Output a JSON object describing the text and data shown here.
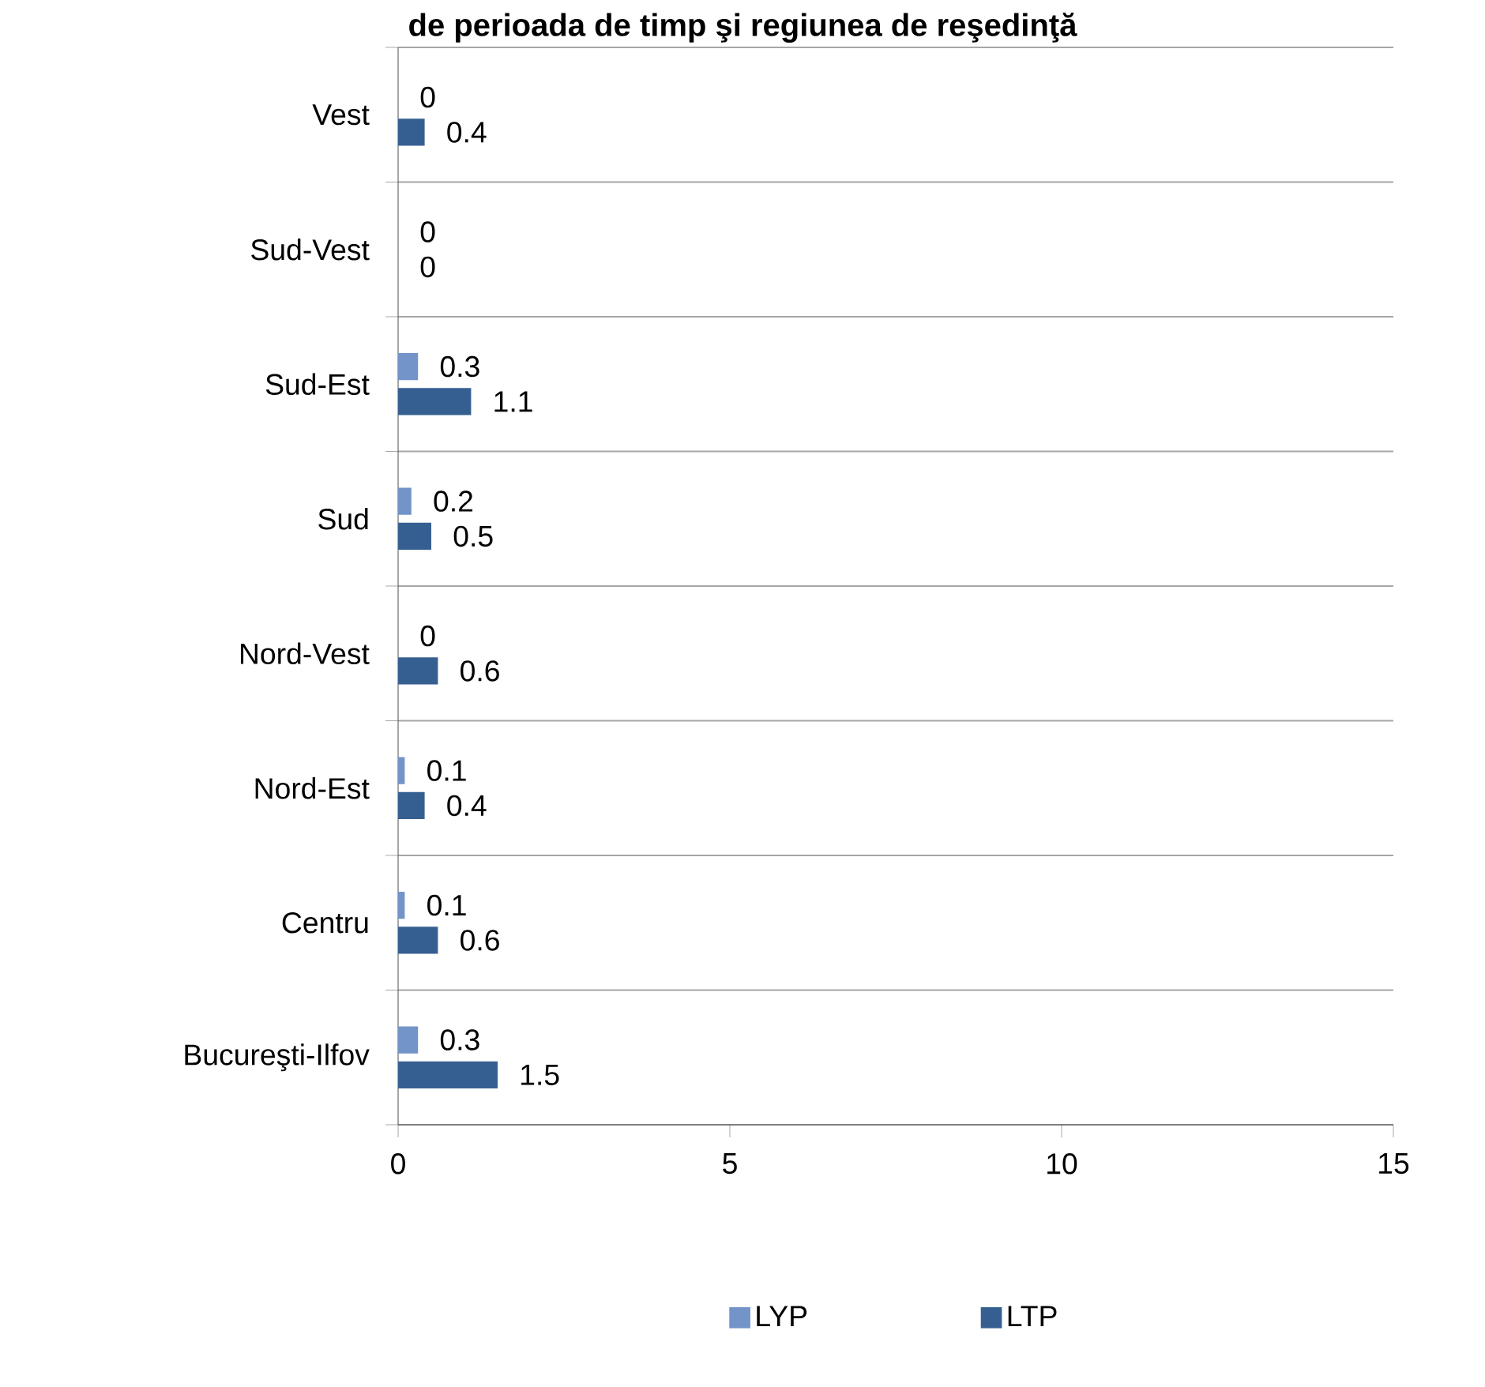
{
  "chart_data": {
    "type": "bar",
    "orientation": "horizontal",
    "title": "de perioada de timp şi regiunea de reşedinţă",
    "categories": [
      "Vest",
      "Sud-Vest",
      "Sud-Est",
      "Sud",
      "Nord-Vest",
      "Nord-Est",
      "Centru",
      "Bucureşti-Ilfov"
    ],
    "series": [
      {
        "name": "LYP",
        "color": "#7394c8",
        "values": [
          0,
          0,
          0.3,
          0.2,
          0,
          0.1,
          0.1,
          0.3
        ]
      },
      {
        "name": "LTP",
        "color": "#365f91",
        "values": [
          0.4,
          0,
          1.1,
          0.5,
          0.6,
          0.4,
          0.6,
          1.5
        ]
      }
    ],
    "xlim": [
      0,
      15
    ],
    "xticks": [
      0,
      5,
      10,
      15
    ],
    "grid": "y",
    "legend": "bottom",
    "data_labels": true
  }
}
